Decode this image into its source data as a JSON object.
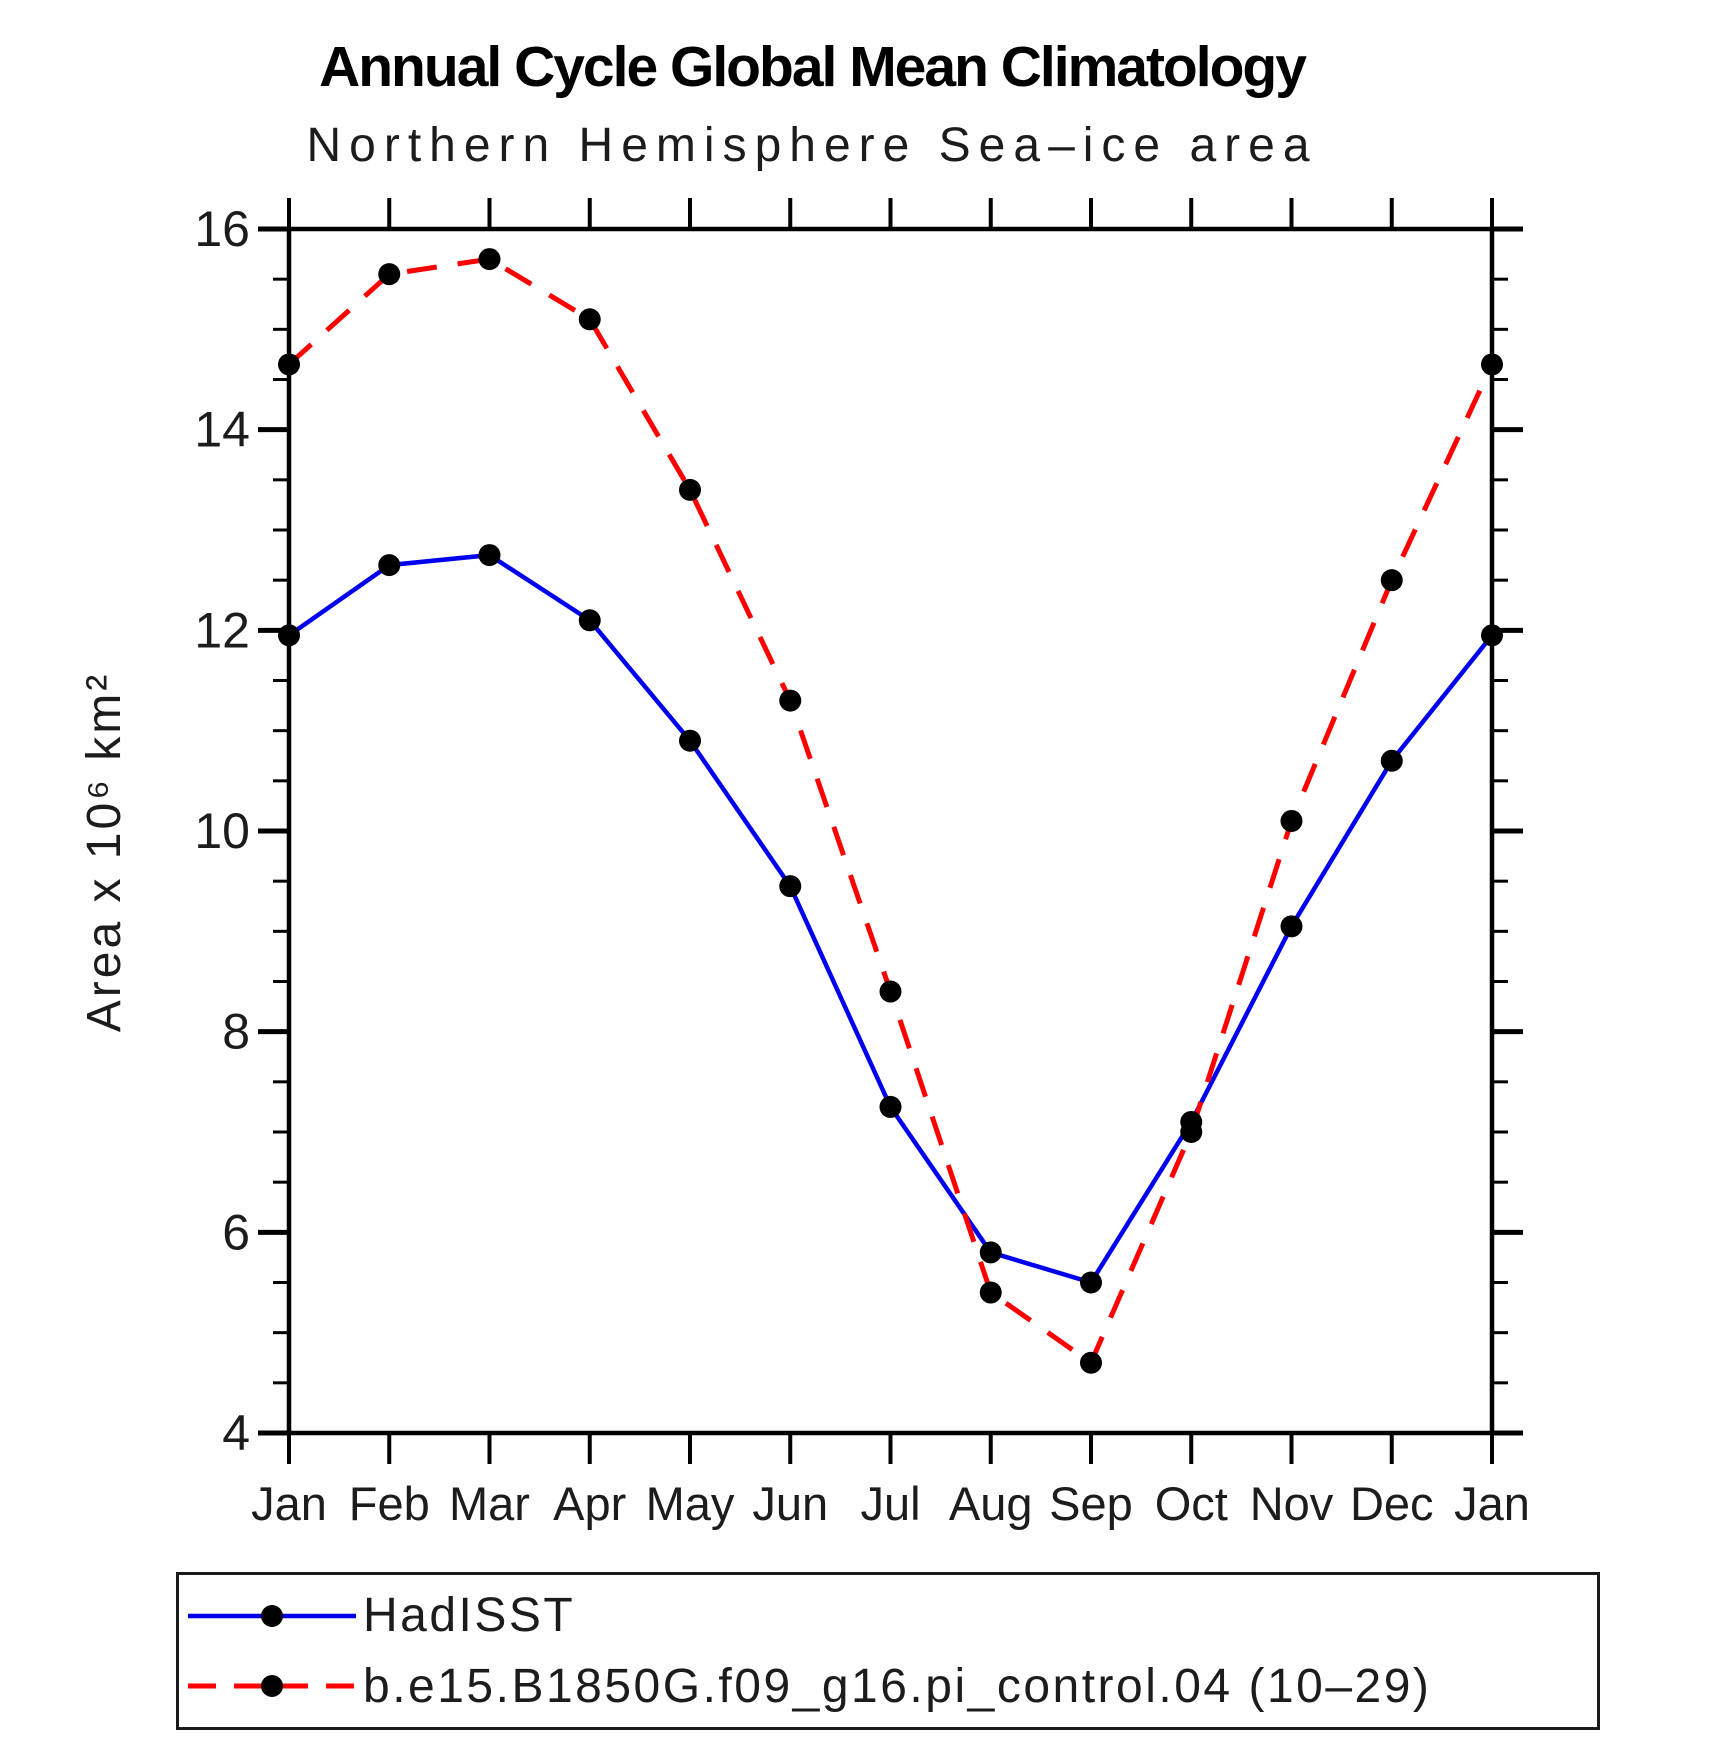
{
  "title": "Annual Cycle Global Mean Climatology",
  "subtitle": "Northern Hemisphere Sea–ice area",
  "y_axis": {
    "title": "Area x 10⁶ km²",
    "tick_labels": [
      "4",
      "6",
      "8",
      "10",
      "12",
      "14",
      "16"
    ],
    "tick_values": [
      4,
      6,
      8,
      10,
      12,
      14,
      16
    ],
    "minor_tick_step": 0.5,
    "range": [
      4,
      16
    ]
  },
  "x_axis": {
    "tick_labels": [
      "Jan",
      "Feb",
      "Mar",
      "Apr",
      "May",
      "Jun",
      "Jul",
      "Aug",
      "Sep",
      "Oct",
      "Nov",
      "Dec",
      "Jan"
    ]
  },
  "legend": {
    "entries": [
      {
        "label": "HadISST",
        "color": "#0000ee",
        "style": "solid",
        "marker": "#000000"
      },
      {
        "label": "b.e15.B1850G.f09_g16.pi_control.04 (10–29)",
        "color": "#ff0000",
        "style": "dashed",
        "marker": "#000000"
      }
    ]
  },
  "chart_data": {
    "type": "line",
    "x": [
      "Jan",
      "Feb",
      "Mar",
      "Apr",
      "May",
      "Jun",
      "Jul",
      "Aug",
      "Sep",
      "Oct",
      "Nov",
      "Dec",
      "Jan"
    ],
    "series": [
      {
        "name": "HadISST",
        "color": "#0000ee",
        "line_style": "solid",
        "marker": "circle",
        "marker_color": "#000000",
        "values": [
          11.95,
          12.65,
          12.75,
          12.1,
          10.9,
          9.45,
          7.25,
          5.8,
          5.5,
          7.1,
          9.05,
          10.7,
          11.95
        ]
      },
      {
        "name": "b.e15.B1850G.f09_g16.pi_control.04 (10–29)",
        "color": "#ff0000",
        "line_style": "dashed",
        "marker": "circle",
        "marker_color": "#000000",
        "values": [
          14.65,
          15.55,
          15.7,
          15.1,
          13.4,
          11.3,
          8.4,
          5.4,
          4.7,
          7.0,
          10.1,
          12.5,
          14.65
        ]
      }
    ],
    "title": "Annual Cycle Global Mean Climatology",
    "subtitle": "Northern Hemisphere Sea–ice area",
    "xlabel": "",
    "ylabel": "Area x 10⁶ km²",
    "ylim": [
      4,
      16
    ],
    "grid": false,
    "legend_position": "bottom-left-box"
  }
}
